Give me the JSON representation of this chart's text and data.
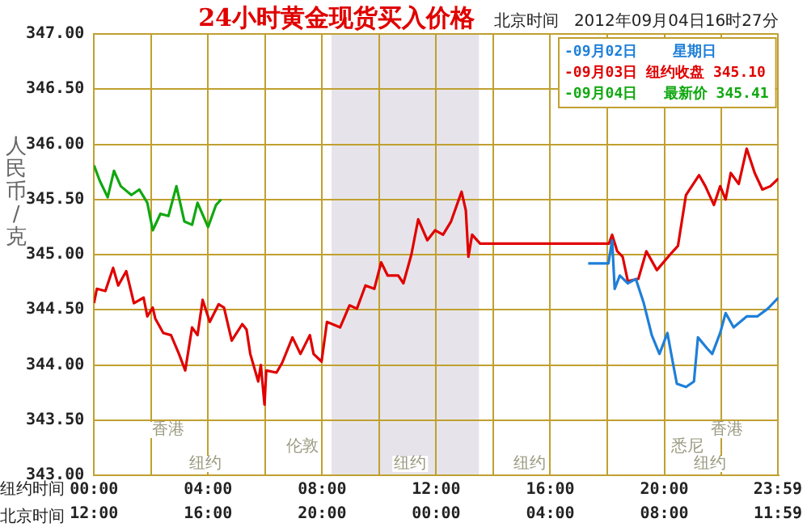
{
  "chart_data": {
    "type": "line",
    "title": "24小时黄金现货买入价格",
    "subtitle": "北京时间   2012年09月04日16时27分",
    "xlabel": "纽约时间",
    "x2label": "北京时间",
    "ylabel": "人民币/克",
    "xlim": [
      0,
      24
    ],
    "xticks": [
      {
        "value": 0,
        "label": "00:00"
      },
      {
        "value": 2,
        "label": null
      },
      {
        "value": 4,
        "label": "04:00"
      },
      {
        "value": 6,
        "label": null
      },
      {
        "value": 8,
        "label": "08:00"
      },
      {
        "value": 10,
        "label": null
      },
      {
        "value": 12,
        "label": "12:00"
      },
      {
        "value": 14,
        "label": null
      },
      {
        "value": 16,
        "label": "16:00"
      },
      {
        "value": 18,
        "label": null
      },
      {
        "value": 20,
        "label": "20:00"
      },
      {
        "value": 22,
        "label": null
      },
      {
        "value": 23.98,
        "label": "23:59"
      }
    ],
    "x2lim": [
      "2012-09-03T12:00",
      "2012-09-04T12:00"
    ],
    "x2ticks": [
      {
        "value": "2012-09-03T12:00",
        "label": "12:00"
      },
      {
        "value": "2012-09-03T16:00",
        "label": "16:00"
      },
      {
        "value": "2012-09-03T20:00",
        "label": "20:00"
      },
      {
        "value": "2012-09-04T00:00",
        "label": "00:00"
      },
      {
        "value": "2012-09-04T04:00",
        "label": "04:00"
      },
      {
        "value": "2012-09-04T08:00",
        "label": "08:00"
      },
      {
        "value": "2012-09-04T11:59",
        "label": "11:59"
      }
    ],
    "ylim": [
      343,
      347
    ],
    "yticks": [
      {
        "value": 343,
        "label": "343.00"
      },
      {
        "value": 343.5,
        "label": "343.50"
      },
      {
        "value": 344,
        "label": "344.00"
      },
      {
        "value": 344.5,
        "label": "344.50"
      },
      {
        "value": 345,
        "label": "345.00"
      },
      {
        "value": 345.5,
        "label": "345.50"
      },
      {
        "value": 346,
        "label": "346.00"
      },
      {
        "value": 346.5,
        "label": "346.50"
      },
      {
        "value": 347,
        "label": "347.00"
      }
    ],
    "grid": true,
    "legend": "top right",
    "marker": "none",
    "bands": [
      {
        "axis": "x",
        "from": 8.33,
        "to": 13.5,
        "color": "#e6e4ea"
      }
    ],
    "annotations": [
      "香港",
      "伦敦",
      "纽约",
      "纽约",
      "纽约",
      "悉尼",
      "香港",
      "纽约"
    ],
    "series": [
      {
        "name": "-09月02日    星期日",
        "color": "#1e7fd8",
        "x": [
          17.33,
          18.04,
          18.17,
          18.26,
          18.44,
          18.72,
          19.0,
          19.28,
          19.56,
          19.83,
          20.11,
          20.3,
          20.44,
          20.76,
          21.04,
          21.18,
          21.5,
          21.68,
          21.96,
          22.15,
          22.43,
          22.89,
          23.26,
          23.63,
          24
        ],
        "values": [
          344.92,
          344.92,
          345.13,
          344.69,
          344.81,
          344.74,
          344.78,
          344.56,
          344.27,
          344.1,
          344.29,
          344.02,
          343.83,
          343.8,
          343.85,
          344.25,
          344.15,
          344.1,
          344.29,
          344.47,
          344.34,
          344.44,
          344.44,
          344.51,
          344.61
        ]
      },
      {
        "name": "-09月03日 纽约收盘 345.10",
        "color": "#e00000",
        "x": [
          0,
          0.1,
          0.4,
          0.67,
          0.85,
          1.13,
          1.4,
          1.74,
          1.87,
          2.06,
          2.15,
          2.43,
          2.7,
          2.98,
          3.2,
          3.44,
          3.63,
          3.81,
          4.06,
          4.37,
          4.56,
          4.83,
          5.2,
          5.35,
          5.48,
          5.76,
          5.85,
          5.98,
          6.04,
          6.4,
          6.6,
          6.96,
          7.24,
          7.57,
          7.7,
          7.98,
          8.17,
          8.63,
          8.96,
          9.22,
          9.52,
          9.83,
          10.07,
          10.3,
          10.67,
          10.85,
          11.13,
          11.37,
          11.69,
          11.96,
          12.24,
          12.52,
          12.89,
          13.04,
          13.13,
          13.26,
          13.54,
          18.06,
          18.17,
          18.35,
          18.54,
          18.72,
          19.09,
          19.37,
          19.74,
          20.2,
          20.48,
          20.76,
          21.22,
          21.44,
          21.74,
          21.96,
          22.15,
          22.33,
          22.61,
          22.89,
          23.17,
          23.44,
          23.72,
          24
        ],
        "values": [
          344.56,
          344.69,
          344.67,
          344.88,
          344.72,
          344.85,
          344.56,
          344.61,
          344.44,
          344.52,
          344.42,
          344.29,
          344.27,
          344.1,
          343.95,
          344.34,
          344.27,
          344.59,
          344.39,
          344.55,
          344.52,
          344.22,
          344.37,
          344.32,
          344.1,
          343.85,
          344.0,
          343.64,
          343.95,
          343.93,
          344.02,
          344.25,
          344.1,
          344.27,
          344.1,
          344.03,
          344.39,
          344.34,
          344.54,
          344.51,
          344.72,
          344.69,
          344.93,
          344.81,
          344.81,
          344.74,
          345.0,
          345.32,
          345.13,
          345.22,
          345.18,
          345.3,
          345.57,
          345.4,
          344.98,
          345.18,
          345.1,
          345.1,
          345.18,
          345.03,
          344.98,
          344.76,
          344.78,
          345.03,
          344.86,
          345.0,
          345.08,
          345.54,
          345.72,
          345.62,
          345.45,
          345.62,
          345.5,
          345.74,
          345.64,
          345.96,
          345.74,
          345.59,
          345.62,
          345.69
        ]
      },
      {
        "name": "-09月04日   最新价 345.41",
        "color": "#10a810",
        "x": [
          0,
          0.2,
          0.48,
          0.7,
          0.94,
          1.31,
          1.59,
          1.87,
          2.06,
          2.33,
          2.61,
          2.89,
          3.17,
          3.44,
          3.63,
          4.0,
          4.28,
          4.46
        ],
        "values": [
          345.81,
          345.67,
          345.52,
          345.76,
          345.62,
          345.54,
          345.59,
          345.47,
          345.22,
          345.37,
          345.35,
          345.62,
          345.3,
          345.27,
          345.47,
          345.25,
          345.45,
          345.5
        ]
      }
    ]
  }
}
